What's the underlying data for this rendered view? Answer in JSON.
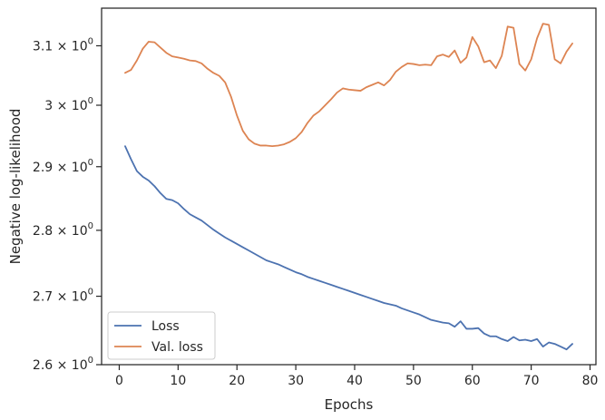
{
  "chart_data": {
    "type": "line",
    "title": "",
    "xlabel": "Epochs",
    "ylabel": "Negative log-likelihood",
    "yscale": "log",
    "xlim": [
      -3,
      81
    ],
    "ylim": [
      2.6,
      3.165
    ],
    "xticks": [
      0,
      10,
      20,
      30,
      40,
      50,
      60,
      70,
      80
    ],
    "yticks": [
      {
        "value": 2.6,
        "mantissa": "2.6",
        "exponent": "0"
      },
      {
        "value": 2.7,
        "mantissa": "2.7",
        "exponent": "0"
      },
      {
        "value": 2.8,
        "mantissa": "2.8",
        "exponent": "0"
      },
      {
        "value": 2.9,
        "mantissa": "2.9",
        "exponent": "0"
      },
      {
        "value": 3.0,
        "mantissa": "3",
        "exponent": "0"
      },
      {
        "value": 3.1,
        "mantissa": "3.1",
        "exponent": "0"
      }
    ],
    "grid": false,
    "legend_position": "lower-left",
    "x": [
      1,
      2,
      3,
      4,
      5,
      6,
      7,
      8,
      9,
      10,
      11,
      12,
      13,
      14,
      15,
      16,
      17,
      18,
      19,
      20,
      21,
      22,
      23,
      24,
      25,
      26,
      27,
      28,
      29,
      30,
      31,
      32,
      33,
      34,
      35,
      36,
      37,
      38,
      39,
      40,
      41,
      42,
      43,
      44,
      45,
      46,
      47,
      48,
      49,
      50,
      51,
      52,
      53,
      54,
      55,
      56,
      57,
      58,
      59,
      60,
      61,
      62,
      63,
      64,
      65,
      66,
      67,
      68,
      69,
      70,
      71,
      72,
      73,
      74,
      75,
      76,
      77
    ],
    "series": [
      {
        "name": "Loss",
        "color": "#4c72b0",
        "values": [
          2.933,
          2.912,
          2.893,
          2.884,
          2.878,
          2.869,
          2.858,
          2.849,
          2.847,
          2.842,
          2.833,
          2.825,
          2.82,
          2.815,
          2.808,
          2.801,
          2.795,
          2.789,
          2.784,
          2.779,
          2.774,
          2.769,
          2.764,
          2.759,
          2.754,
          2.751,
          2.748,
          2.744,
          2.74,
          2.736,
          2.733,
          2.729,
          2.726,
          2.723,
          2.72,
          2.717,
          2.714,
          2.711,
          2.708,
          2.705,
          2.702,
          2.699,
          2.696,
          2.693,
          2.69,
          2.688,
          2.686,
          2.682,
          2.679,
          2.676,
          2.673,
          2.669,
          2.665,
          2.663,
          2.661,
          2.66,
          2.655,
          2.663,
          2.652,
          2.652,
          2.653,
          2.645,
          2.641,
          2.641,
          2.637,
          2.634,
          2.64,
          2.635,
          2.636,
          2.634,
          2.637,
          2.626,
          2.632,
          2.63,
          2.626,
          2.622,
          2.63
        ]
      },
      {
        "name": "Val. loss",
        "color": "#dd8452",
        "values": [
          3.054,
          3.059,
          3.075,
          3.095,
          3.107,
          3.106,
          3.097,
          3.088,
          3.082,
          3.08,
          3.078,
          3.075,
          3.074,
          3.07,
          3.061,
          3.054,
          3.049,
          3.038,
          3.014,
          2.983,
          2.958,
          2.944,
          2.937,
          2.934,
          2.934,
          2.933,
          2.934,
          2.936,
          2.94,
          2.946,
          2.956,
          2.971,
          2.983,
          2.99,
          3.0,
          3.01,
          3.021,
          3.028,
          3.026,
          3.025,
          3.024,
          3.03,
          3.034,
          3.038,
          3.033,
          3.042,
          3.056,
          3.064,
          3.07,
          3.069,
          3.067,
          3.068,
          3.067,
          3.082,
          3.085,
          3.081,
          3.092,
          3.071,
          3.08,
          3.115,
          3.099,
          3.072,
          3.075,
          3.062,
          3.083,
          3.133,
          3.131,
          3.069,
          3.058,
          3.077,
          3.113,
          3.138,
          3.136,
          3.077,
          3.07,
          3.09,
          3.104
        ]
      }
    ]
  }
}
